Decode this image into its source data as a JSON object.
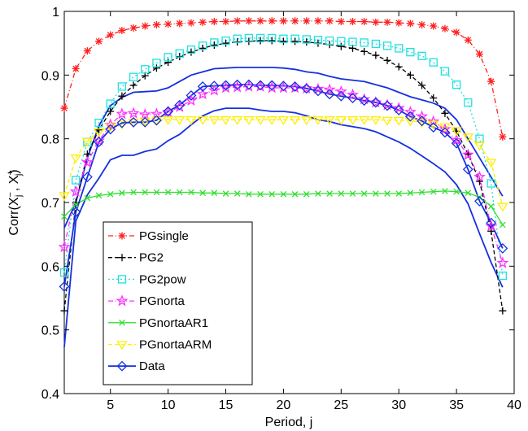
{
  "chart_data": {
    "type": "line",
    "title": "",
    "xlabel": "Period, j",
    "ylabel": "Corr(X⁻ⱼ , X⁺ⱼ)",
    "ylabel_parts": {
      "pre": "Corr(X",
      "sup1": "−",
      "sub1": "j",
      "mid": " , X",
      "sup2": "+",
      "sub2": "j",
      "post": ")"
    },
    "xlim": [
      1,
      40
    ],
    "ylim": [
      0.4,
      1.0
    ],
    "xticks": [
      5,
      10,
      15,
      20,
      25,
      30,
      35,
      40
    ],
    "yticks": [
      0.4,
      0.5,
      0.6,
      0.7,
      0.8,
      0.9,
      1.0
    ],
    "ytick_labels": [
      "0.4",
      "0.5",
      "0.6",
      "0.7",
      "0.8",
      "0.9",
      "1"
    ],
    "grid": false,
    "legend": "bottom-left",
    "x": [
      1,
      2,
      3,
      4,
      5,
      6,
      7,
      8,
      9,
      10,
      11,
      12,
      13,
      14,
      15,
      16,
      17,
      18,
      19,
      20,
      21,
      22,
      23,
      24,
      25,
      26,
      27,
      28,
      29,
      30,
      31,
      32,
      33,
      34,
      35,
      36,
      37,
      38,
      39
    ],
    "series": [
      {
        "name": "PGsingle",
        "color": "#ff2020",
        "dash": "6,3,1,3",
        "marker": "asterisk",
        "values": [
          0.848,
          0.91,
          0.938,
          0.953,
          0.963,
          0.97,
          0.974,
          0.977,
          0.979,
          0.98,
          0.981,
          0.982,
          0.983,
          0.984,
          0.984,
          0.985,
          0.985,
          0.985,
          0.985,
          0.985,
          0.985,
          0.985,
          0.985,
          0.985,
          0.984,
          0.984,
          0.984,
          0.983,
          0.983,
          0.982,
          0.981,
          0.979,
          0.977,
          0.973,
          0.967,
          0.955,
          0.933,
          0.89,
          0.803
        ]
      },
      {
        "name": "PG2",
        "color": "#000000",
        "dash": "5,3",
        "marker": "plus",
        "values": [
          0.53,
          0.7,
          0.776,
          0.814,
          0.843,
          0.867,
          0.884,
          0.899,
          0.911,
          0.92,
          0.929,
          0.936,
          0.942,
          0.947,
          0.95,
          0.952,
          0.953,
          0.954,
          0.954,
          0.953,
          0.953,
          0.952,
          0.95,
          0.948,
          0.945,
          0.942,
          0.937,
          0.931,
          0.923,
          0.913,
          0.9,
          0.884,
          0.864,
          0.84,
          0.812,
          0.776,
          0.733,
          0.655,
          0.53
        ]
      },
      {
        "name": "PG2pow",
        "color": "#20e0e0",
        "dash": "2,3",
        "marker": "square",
        "values": [
          0.59,
          0.735,
          0.795,
          0.825,
          0.855,
          0.882,
          0.897,
          0.909,
          0.919,
          0.928,
          0.934,
          0.94,
          0.946,
          0.951,
          0.954,
          0.957,
          0.958,
          0.958,
          0.958,
          0.957,
          0.957,
          0.956,
          0.955,
          0.954,
          0.953,
          0.952,
          0.951,
          0.949,
          0.946,
          0.942,
          0.936,
          0.93,
          0.92,
          0.906,
          0.885,
          0.857,
          0.8,
          0.73,
          0.585
        ]
      },
      {
        "name": "PGnorta",
        "color": "#ff30ff",
        "dash": "6,3,1,3",
        "marker": "star",
        "values": [
          0.63,
          0.717,
          0.763,
          0.797,
          0.822,
          0.839,
          0.84,
          0.838,
          0.839,
          0.842,
          0.85,
          0.86,
          0.87,
          0.876,
          0.88,
          0.881,
          0.882,
          0.882,
          0.88,
          0.88,
          0.88,
          0.879,
          0.878,
          0.877,
          0.874,
          0.869,
          0.862,
          0.857,
          0.853,
          0.848,
          0.842,
          0.835,
          0.827,
          0.815,
          0.798,
          0.775,
          0.74,
          0.663,
          0.605
        ]
      },
      {
        "name": "PGnortaAR1",
        "color": "#30e030",
        "dash": "",
        "marker": "x",
        "values": [
          0.678,
          0.697,
          0.707,
          0.711,
          0.713,
          0.715,
          0.716,
          0.716,
          0.716,
          0.716,
          0.716,
          0.716,
          0.715,
          0.715,
          0.714,
          0.714,
          0.713,
          0.713,
          0.713,
          0.713,
          0.713,
          0.713,
          0.714,
          0.714,
          0.714,
          0.714,
          0.714,
          0.714,
          0.714,
          0.714,
          0.715,
          0.716,
          0.717,
          0.718,
          0.717,
          0.715,
          0.708,
          0.694,
          0.665
        ]
      },
      {
        "name": "PGnortaARM",
        "color": "#ffee00",
        "dash": "5,3",
        "marker": "triangle-down",
        "values": [
          0.711,
          0.77,
          0.796,
          0.811,
          0.819,
          0.823,
          0.826,
          0.828,
          0.829,
          0.83,
          0.83,
          0.83,
          0.83,
          0.83,
          0.83,
          0.83,
          0.83,
          0.83,
          0.83,
          0.83,
          0.83,
          0.83,
          0.83,
          0.83,
          0.83,
          0.83,
          0.83,
          0.83,
          0.829,
          0.829,
          0.828,
          0.826,
          0.823,
          0.819,
          0.813,
          0.803,
          0.79,
          0.763,
          0.694
        ]
      },
      {
        "name": "Data",
        "color": "#1530e0",
        "dash": "",
        "marker": "diamond",
        "values": [
          0.568,
          0.685,
          0.74,
          0.795,
          0.815,
          0.825,
          0.826,
          0.826,
          0.829,
          0.843,
          0.853,
          0.868,
          0.882,
          0.883,
          0.884,
          0.885,
          0.885,
          0.884,
          0.884,
          0.883,
          0.882,
          0.879,
          0.875,
          0.87,
          0.867,
          0.864,
          0.86,
          0.857,
          0.852,
          0.845,
          0.835,
          0.828,
          0.818,
          0.81,
          0.793,
          0.752,
          0.702,
          0.668,
          0.628
        ]
      }
    ],
    "bands": [
      {
        "values": [
          0.473,
          0.671,
          0.712,
          0.738,
          0.767,
          0.774,
          0.774,
          0.78,
          0.784,
          0.797,
          0.807,
          0.822,
          0.836,
          0.844,
          0.848,
          0.848,
          0.848,
          0.845,
          0.843,
          0.843,
          0.841,
          0.836,
          0.83,
          0.827,
          0.822,
          0.819,
          0.816,
          0.811,
          0.803,
          0.795,
          0.785,
          0.773,
          0.761,
          0.748,
          0.728,
          0.698,
          0.651,
          0.606,
          0.567
        ]
      },
      {
        "values": [
          0.66,
          0.7,
          0.77,
          0.82,
          0.852,
          0.865,
          0.873,
          0.874,
          0.875,
          0.88,
          0.89,
          0.9,
          0.905,
          0.91,
          0.911,
          0.912,
          0.912,
          0.912,
          0.912,
          0.911,
          0.909,
          0.905,
          0.903,
          0.898,
          0.894,
          0.892,
          0.89,
          0.885,
          0.88,
          0.873,
          0.866,
          0.861,
          0.856,
          0.848,
          0.83,
          0.8,
          0.77,
          0.74,
          0.71
        ]
      }
    ]
  }
}
